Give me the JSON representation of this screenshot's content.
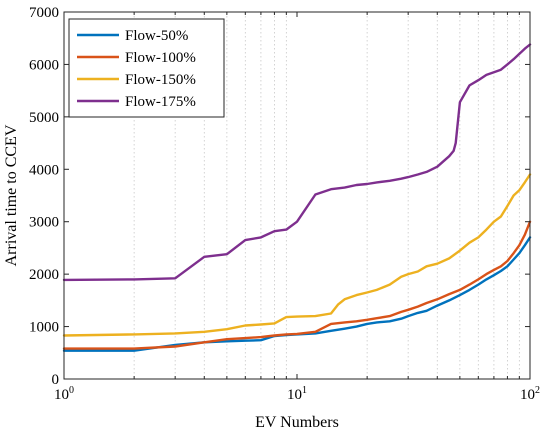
{
  "chart_data": {
    "type": "line",
    "xlabel": "EV Numbers",
    "ylabel": "Arrival time to CCEV",
    "xscale": "log",
    "xlim": [
      1,
      100
    ],
    "ylim": [
      0,
      7000
    ],
    "xticks": [
      1,
      10,
      100
    ],
    "xtick_labels": [
      "10",
      "10",
      "10"
    ],
    "xtick_exponents": [
      "0",
      "1",
      "2"
    ],
    "yticks": [
      0,
      1000,
      2000,
      3000,
      4000,
      5000,
      6000,
      7000
    ],
    "ytick_labels": [
      "0",
      "1000",
      "2000",
      "3000",
      "4000",
      "5000",
      "6000",
      "7000"
    ],
    "grid": "minor-x dotted",
    "legend_position": "top-left",
    "series": [
      {
        "name": "Flow-50%",
        "color": "#0072BD",
        "x": [
          1,
          2,
          3,
          4,
          5,
          6,
          7,
          8,
          9,
          10,
          12,
          14,
          16,
          18,
          20,
          22,
          25,
          28,
          30,
          33,
          36,
          40,
          45,
          50,
          55,
          60,
          65,
          70,
          75,
          80,
          85,
          90,
          95,
          100
        ],
        "y": [
          540,
          540,
          650,
          700,
          720,
          730,
          740,
          820,
          840,
          850,
          870,
          920,
          960,
          1000,
          1050,
          1080,
          1100,
          1150,
          1200,
          1260,
          1300,
          1400,
          1500,
          1600,
          1700,
          1800,
          1900,
          1980,
          2060,
          2150,
          2280,
          2400,
          2550,
          2700
        ]
      },
      {
        "name": "Flow-100%",
        "color": "#D95319",
        "x": [
          1,
          2,
          3,
          4,
          5,
          6,
          7,
          8,
          9,
          10,
          12,
          14,
          16,
          18,
          20,
          22,
          25,
          28,
          30,
          33,
          36,
          40,
          45,
          50,
          55,
          60,
          65,
          70,
          75,
          80,
          85,
          90,
          95,
          100
        ],
        "y": [
          580,
          580,
          620,
          700,
          760,
          780,
          800,
          830,
          850,
          860,
          900,
          1050,
          1080,
          1100,
          1130,
          1160,
          1200,
          1280,
          1320,
          1380,
          1450,
          1520,
          1620,
          1700,
          1800,
          1900,
          2000,
          2080,
          2150,
          2250,
          2400,
          2550,
          2750,
          3000
        ]
      },
      {
        "name": "Flow-150%",
        "color": "#EDB120",
        "x": [
          1,
          2,
          3,
          4,
          5,
          6,
          7,
          8,
          9,
          10,
          12,
          14,
          15,
          16,
          18,
          20,
          22,
          25,
          28,
          30,
          33,
          36,
          40,
          45,
          50,
          55,
          60,
          65,
          70,
          75,
          80,
          85,
          90,
          95,
          100
        ],
        "y": [
          830,
          850,
          870,
          900,
          950,
          1020,
          1040,
          1060,
          1180,
          1190,
          1200,
          1250,
          1420,
          1520,
          1600,
          1650,
          1700,
          1800,
          1950,
          2000,
          2050,
          2150,
          2200,
          2300,
          2450,
          2600,
          2700,
          2850,
          3000,
          3100,
          3300,
          3500,
          3600,
          3750,
          3900
        ]
      },
      {
        "name": "Flow-175%",
        "color": "#7E2F8E",
        "x": [
          1,
          2,
          3,
          4,
          5,
          6,
          7,
          8,
          9,
          10,
          12,
          14,
          16,
          18,
          20,
          22,
          25,
          28,
          30,
          33,
          36,
          40,
          45,
          47,
          48,
          50,
          55,
          60,
          65,
          70,
          75,
          80,
          85,
          90,
          95,
          100
        ],
        "y": [
          1890,
          1900,
          1920,
          2330,
          2380,
          2650,
          2700,
          2820,
          2850,
          3000,
          3520,
          3620,
          3650,
          3700,
          3720,
          3750,
          3780,
          3820,
          3850,
          3900,
          3950,
          4050,
          4250,
          4350,
          4500,
          5280,
          5600,
          5700,
          5800,
          5850,
          5900,
          6000,
          6100,
          6200,
          6300,
          6380
        ]
      }
    ]
  }
}
